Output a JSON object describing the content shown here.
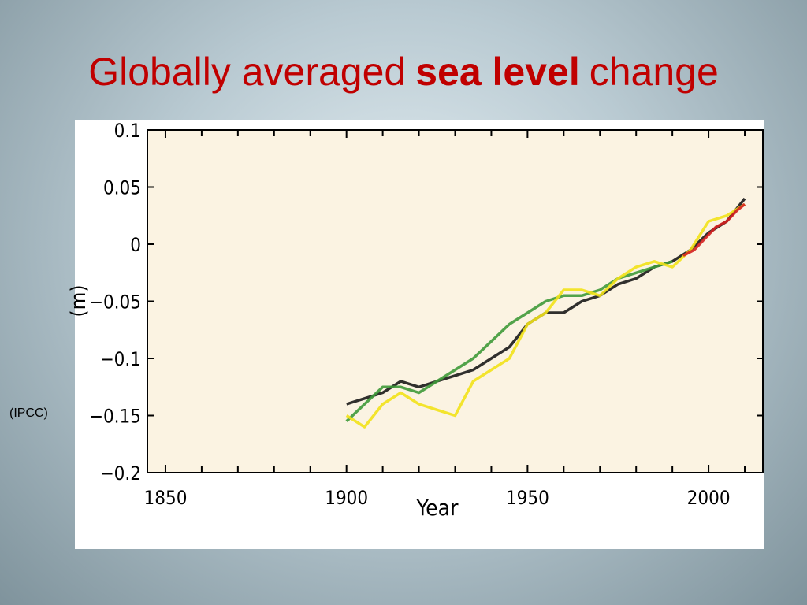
{
  "title": {
    "parts": [
      "Globally averaged",
      "sea level",
      "change"
    ]
  },
  "caption": "(IPCC)",
  "chart_data": {
    "type": "line",
    "xlabel": "Year",
    "ylabel": "(m)",
    "xlim": [
      1845,
      2015
    ],
    "ylim": [
      -0.2,
      0.1
    ],
    "xticks": [
      1850,
      1900,
      1950,
      2000
    ],
    "xminorticks": [
      1860,
      1870,
      1880,
      1890,
      1910,
      1920,
      1930,
      1940,
      1960,
      1970,
      1980,
      1990,
      2010
    ],
    "yticks": [
      0.1,
      0.05,
      0,
      {
        "value": -0.05,
        "label": "−0.05"
      },
      {
        "value": -0.1,
        "label": "−0.1"
      },
      {
        "value": -0.15,
        "label": "−0.15"
      },
      {
        "value": -0.2,
        "label": "−0.2"
      }
    ],
    "series": [
      {
        "color": "#1a1a1a",
        "x": [
          1900,
          1905,
          1910,
          1915,
          1920,
          1925,
          1930,
          1935,
          1940,
          1945,
          1950,
          1955,
          1960,
          1965,
          1970,
          1975,
          1980,
          1985,
          1990,
          1995,
          2000,
          2005,
          2010
        ],
        "values": [
          -0.14,
          -0.135,
          -0.13,
          -0.12,
          -0.125,
          -0.12,
          -0.115,
          -0.11,
          -0.1,
          -0.09,
          -0.07,
          -0.06,
          -0.06,
          -0.05,
          -0.045,
          -0.035,
          -0.03,
          -0.02,
          -0.015,
          -0.005,
          0.01,
          0.02,
          0.04
        ]
      },
      {
        "color": "#3f9a3a",
        "x": [
          1900,
          1905,
          1910,
          1915,
          1920,
          1925,
          1930,
          1935,
          1940,
          1945,
          1950,
          1955,
          1960,
          1965,
          1970,
          1975,
          1980,
          1985,
          1990
        ],
        "values": [
          -0.155,
          -0.14,
          -0.125,
          -0.125,
          -0.13,
          -0.12,
          -0.11,
          -0.1,
          -0.085,
          -0.07,
          -0.06,
          -0.05,
          -0.045,
          -0.045,
          -0.04,
          -0.03,
          -0.025,
          -0.02,
          -0.015
        ]
      },
      {
        "color": "#f2e21a",
        "x": [
          1900,
          1905,
          1910,
          1915,
          1920,
          1925,
          1930,
          1935,
          1940,
          1945,
          1950,
          1955,
          1960,
          1965,
          1970,
          1975,
          1980,
          1985,
          1990,
          1995,
          2000,
          2005,
          2010
        ],
        "values": [
          -0.15,
          -0.16,
          -0.14,
          -0.13,
          -0.14,
          -0.145,
          -0.15,
          -0.12,
          -0.11,
          -0.1,
          -0.07,
          -0.06,
          -0.04,
          -0.04,
          -0.045,
          -0.03,
          -0.02,
          -0.015,
          -0.02,
          -0.005,
          0.02,
          0.025,
          0.035
        ]
      },
      {
        "color": "#d42020",
        "x": [
          1993,
          1996,
          1999,
          2002,
          2005,
          2008,
          2010
        ],
        "values": [
          -0.01,
          -0.005,
          0.005,
          0.015,
          0.02,
          0.03,
          0.035
        ]
      }
    ]
  }
}
